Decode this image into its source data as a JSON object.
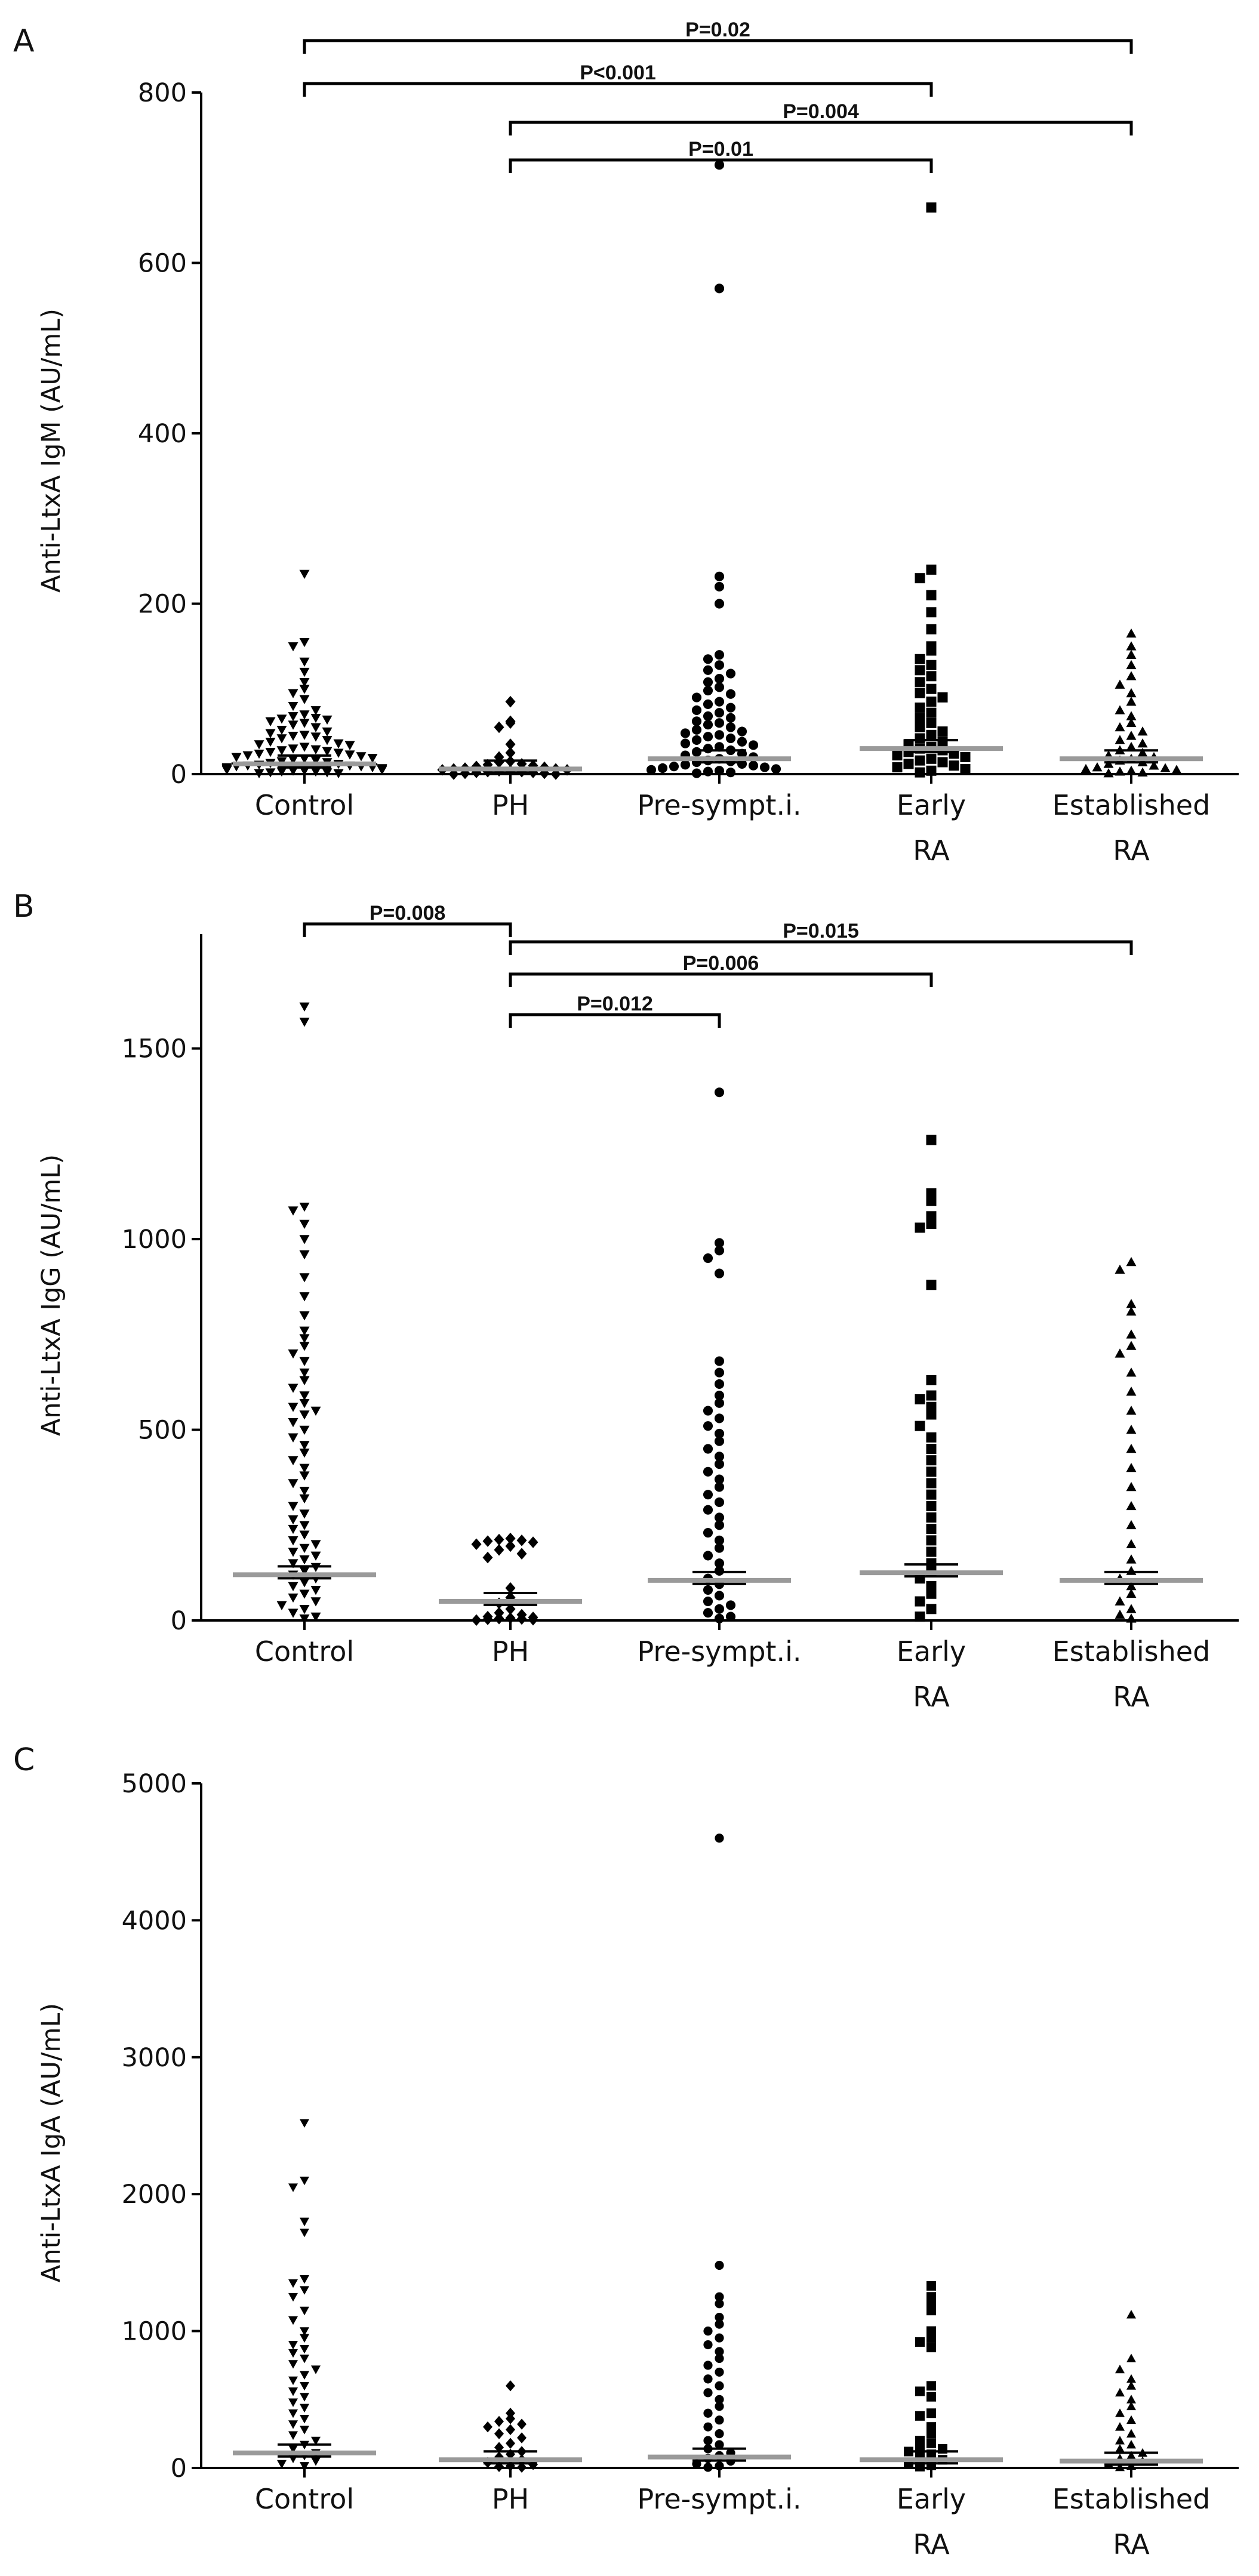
{
  "chart_data": [
    {
      "panel": "A",
      "type": "scatter",
      "title": "",
      "xlabel": "",
      "ylabel": "Anti-LtxA IgM (AU/mL)",
      "ylim": [
        0,
        800
      ],
      "yticks": [
        "0",
        "200",
        "400",
        "600",
        "800"
      ],
      "categories": [
        "Control",
        "PH",
        "Pre-sympt.i.",
        "Early RA",
        "Established RA"
      ],
      "category_labels": [
        [
          "Control"
        ],
        [
          "PH"
        ],
        [
          "Pre-sympt.i."
        ],
        [
          "Early",
          "RA"
        ],
        [
          "Established",
          "RA"
        ]
      ],
      "markers": [
        "triangle-down",
        "diamond",
        "circle",
        "square",
        "triangle-up"
      ],
      "medians": [
        12,
        6,
        18,
        30,
        18
      ],
      "series": [
        {
          "name": "Control",
          "values": [
            235,
            155,
            150,
            132,
            120,
            108,
            100,
            95,
            88,
            80,
            75,
            70,
            68,
            66,
            65,
            64,
            62,
            60,
            58,
            55,
            52,
            50,
            48,
            46,
            45,
            44,
            42,
            40,
            38,
            36,
            35,
            34,
            32,
            30,
            29,
            28,
            27,
            26,
            25,
            24,
            23,
            22,
            21,
            20,
            19,
            18,
            17,
            16,
            15,
            14,
            13,
            12,
            11,
            10,
            10,
            9,
            9,
            8,
            8,
            7,
            7,
            6,
            6,
            5,
            5,
            4,
            4,
            3,
            3,
            2,
            2,
            1,
            1
          ]
        },
        {
          "name": "PH",
          "values": [
            85,
            62,
            60,
            55,
            35,
            25,
            20,
            15,
            14,
            12,
            11,
            10,
            9,
            8,
            7,
            6,
            6,
            5,
            5,
            4,
            4,
            3,
            3,
            2,
            2,
            1,
            1,
            0,
            0
          ]
        },
        {
          "name": "Pre-sympt.i.",
          "values": [
            715,
            570,
            232,
            220,
            200,
            140,
            135,
            128,
            122,
            118,
            112,
            108,
            102,
            98,
            94,
            90,
            85,
            82,
            78,
            75,
            72,
            68,
            66,
            62,
            60,
            58,
            55,
            52,
            50,
            48,
            46,
            44,
            42,
            40,
            38,
            36,
            34,
            32,
            30,
            28,
            26,
            24,
            22,
            20,
            18,
            16,
            15,
            14,
            12,
            11,
            10,
            9,
            8,
            7,
            6,
            5,
            4,
            3,
            2,
            1
          ]
        },
        {
          "name": "Early RA",
          "values": [
            665,
            240,
            230,
            210,
            190,
            170,
            150,
            145,
            135,
            128,
            122,
            115,
            108,
            100,
            95,
            90,
            85,
            78,
            72,
            66,
            60,
            55,
            50,
            46,
            42,
            38,
            35,
            32,
            30,
            28,
            26,
            24,
            22,
            20,
            18,
            16,
            14,
            12,
            10,
            8,
            6,
            4,
            2
          ]
        },
        {
          "name": "Established RA",
          "values": [
            165,
            150,
            140,
            128,
            115,
            105,
            95,
            85,
            75,
            68,
            60,
            55,
            50,
            45,
            40,
            36,
            32,
            28,
            25,
            22,
            20,
            18,
            16,
            14,
            12,
            10,
            8,
            7,
            6,
            5,
            4,
            3,
            2,
            1
          ]
        }
      ],
      "significance": [
        {
          "from": 0,
          "to": 4,
          "label": "P=0.02"
        },
        {
          "from": 0,
          "to": 3,
          "label": "P<0.001"
        },
        {
          "from": 1,
          "to": 4,
          "label": "P=0.004"
        },
        {
          "from": 1,
          "to": 3,
          "label": "P=0.01"
        }
      ]
    },
    {
      "panel": "B",
      "type": "scatter",
      "title": "",
      "xlabel": "",
      "ylabel": "Anti-LtxA IgG (AU/mL)",
      "ylim": [
        0,
        1800
      ],
      "yticks": [
        "0",
        "500",
        "1000",
        "1500"
      ],
      "categories": [
        "Control",
        "PH",
        "Pre-sympt.i.",
        "Early RA",
        "Established RA"
      ],
      "category_labels": [
        [
          "Control"
        ],
        [
          "PH"
        ],
        [
          "Pre-sympt.i."
        ],
        [
          "Early",
          "RA"
        ],
        [
          "Established",
          "RA"
        ]
      ],
      "markers": [
        "triangle-down",
        "diamond",
        "circle",
        "square",
        "triangle-up"
      ],
      "medians": [
        120,
        50,
        105,
        125,
        105
      ],
      "series": [
        {
          "name": "Control",
          "values": [
            1610,
            1570,
            1085,
            1075,
            1040,
            1000,
            960,
            900,
            850,
            800,
            760,
            740,
            720,
            700,
            680,
            650,
            630,
            610,
            590,
            570,
            560,
            550,
            540,
            520,
            500,
            480,
            460,
            440,
            420,
            400,
            380,
            360,
            340,
            320,
            300,
            280,
            265,
            250,
            240,
            225,
            210,
            200,
            190,
            180,
            170,
            160,
            150,
            140,
            130,
            120,
            110,
            100,
            90,
            80,
            70,
            60,
            50,
            40,
            30,
            20,
            10,
            5
          ]
        },
        {
          "name": "PH",
          "values": [
            215,
            212,
            210,
            208,
            205,
            200,
            195,
            185,
            175,
            165,
            85,
            60,
            45,
            30,
            20,
            15,
            10,
            8,
            6,
            5,
            4,
            3,
            2,
            1
          ]
        },
        {
          "name": "Pre-sympt.i.",
          "values": [
            1385,
            990,
            970,
            950,
            910,
            680,
            650,
            620,
            590,
            570,
            550,
            530,
            510,
            490,
            470,
            450,
            430,
            410,
            390,
            370,
            350,
            330,
            310,
            290,
            270,
            250,
            230,
            210,
            190,
            170,
            150,
            130,
            110,
            95,
            80,
            65,
            50,
            40,
            30,
            20,
            10,
            5
          ]
        },
        {
          "name": "Early RA",
          "values": [
            1260,
            1120,
            1100,
            1060,
            1040,
            1030,
            880,
            630,
            590,
            580,
            560,
            540,
            510,
            480,
            450,
            420,
            390,
            360,
            330,
            300,
            270,
            240,
            210,
            180,
            150,
            130,
            110,
            90,
            70,
            50,
            30,
            10
          ]
        },
        {
          "name": "Established RA",
          "values": [
            940,
            920,
            830,
            810,
            750,
            720,
            700,
            650,
            600,
            550,
            500,
            450,
            400,
            350,
            300,
            250,
            200,
            160,
            130,
            110,
            90,
            70,
            50,
            30,
            15,
            5
          ]
        }
      ],
      "significance": [
        {
          "from": 0,
          "to": 1,
          "label": "P=0.008"
        },
        {
          "from": 1,
          "to": 4,
          "label": "P=0.015"
        },
        {
          "from": 1,
          "to": 3,
          "label": "P=0.006"
        },
        {
          "from": 1,
          "to": 2,
          "label": "P=0.012"
        }
      ]
    },
    {
      "panel": "C",
      "type": "scatter",
      "title": "",
      "xlabel": "",
      "ylabel": "Anti-LtxA IgA (AU/mL)",
      "ylim": [
        0,
        5000
      ],
      "yticks": [
        "0",
        "1000",
        "2000",
        "3000",
        "4000",
        "5000"
      ],
      "categories": [
        "Control",
        "PH",
        "Pre-sympt.i.",
        "Early RA",
        "Established RA"
      ],
      "category_labels": [
        [
          "Control"
        ],
        [
          "PH"
        ],
        [
          "Pre-sympt.i."
        ],
        [
          "Early",
          "RA"
        ],
        [
          "Established",
          "RA"
        ]
      ],
      "markers": [
        "triangle-down",
        "diamond",
        "circle",
        "square",
        "triangle-up"
      ],
      "medians": [
        110,
        60,
        80,
        60,
        50
      ],
      "series": [
        {
          "name": "Control",
          "values": [
            2520,
            2100,
            2050,
            1800,
            1720,
            1380,
            1350,
            1300,
            1250,
            1150,
            1080,
            1000,
            950,
            900,
            870,
            840,
            800,
            760,
            720,
            680,
            640,
            600,
            560,
            520,
            480,
            440,
            400,
            360,
            320,
            280,
            240,
            200,
            170,
            140,
            110,
            90,
            70,
            50,
            30,
            15
          ]
        },
        {
          "name": "PH",
          "values": [
            600,
            400,
            360,
            340,
            320,
            300,
            280,
            250,
            220,
            180,
            150,
            120,
            100,
            80,
            60,
            40,
            25,
            15,
            10,
            5
          ]
        },
        {
          "name": "Pre-sympt.i.",
          "values": [
            4600,
            1480,
            1250,
            1200,
            1100,
            1050,
            1000,
            950,
            900,
            850,
            800,
            750,
            700,
            650,
            600,
            550,
            500,
            450,
            400,
            350,
            300,
            250,
            200,
            170,
            140,
            110,
            90,
            70,
            50,
            30,
            15,
            5
          ]
        },
        {
          "name": "Early RA",
          "values": [
            1330,
            1250,
            1200,
            1150,
            1000,
            950,
            920,
            880,
            600,
            560,
            520,
            400,
            380,
            300,
            250,
            200,
            180,
            160,
            140,
            120,
            100,
            80,
            60,
            40,
            20,
            10
          ]
        },
        {
          "name": "Established RA",
          "values": [
            1120,
            800,
            720,
            650,
            600,
            550,
            500,
            450,
            400,
            350,
            300,
            250,
            200,
            170,
            140,
            110,
            90,
            70,
            50,
            30,
            15,
            5
          ]
        }
      ],
      "significance": []
    }
  ]
}
